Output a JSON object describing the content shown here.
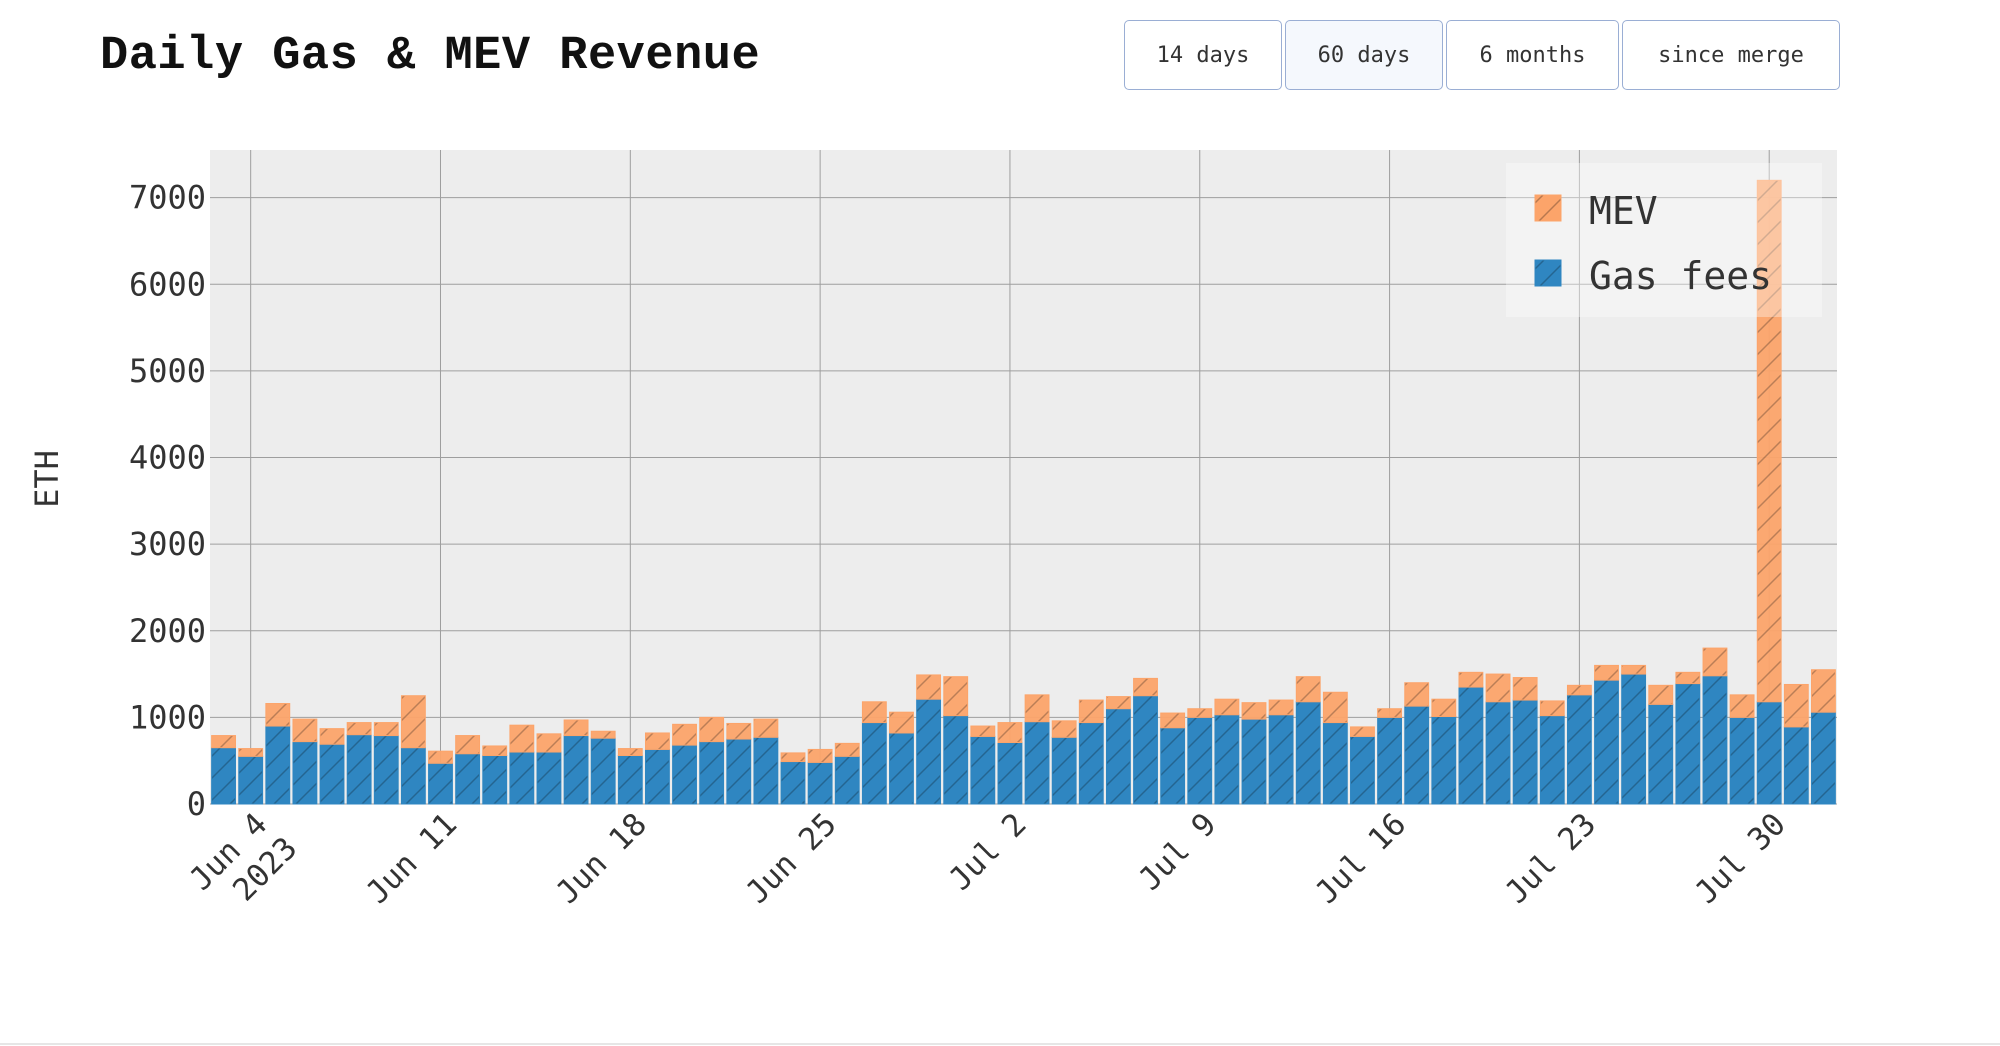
{
  "header": {
    "title": "Daily Gas & MEV Revenue"
  },
  "range_buttons": [
    {
      "label": "14 days",
      "active": false
    },
    {
      "label": "60 days",
      "active": true
    },
    {
      "label": "6 months",
      "active": false
    },
    {
      "label": "since merge",
      "active": false
    }
  ],
  "colors": {
    "gas_fees": "#2f86c1",
    "mev": "#fca46a",
    "plot_background": "#ededed",
    "gridline": "#9e9e9e"
  },
  "chart_data": {
    "type": "bar",
    "stacked": true,
    "title": "Daily Gas & MEV Revenue",
    "xlabel": "",
    "ylabel": "ETH",
    "ylim": [
      0,
      7550
    ],
    "xlim": [
      "2023-06-02T12:00",
      "2023-08-01T12:00"
    ],
    "grid": true,
    "legend_position": "top-right",
    "bar_pattern": "diagonal-hatch",
    "y_ticks": [
      0,
      1000,
      2000,
      3000,
      4000,
      5000,
      6000,
      7000
    ],
    "x_ticks": [
      {
        "date": "2023-06-04",
        "label": "Jun 4",
        "sublabel": "2023"
      },
      {
        "date": "2023-06-11",
        "label": "Jun 11"
      },
      {
        "date": "2023-06-18",
        "label": "Jun 18"
      },
      {
        "date": "2023-06-25",
        "label": "Jun 25"
      },
      {
        "date": "2023-07-02",
        "label": "Jul 2"
      },
      {
        "date": "2023-07-09",
        "label": "Jul 9"
      },
      {
        "date": "2023-07-16",
        "label": "Jul 16"
      },
      {
        "date": "2023-07-23",
        "label": "Jul 23"
      },
      {
        "date": "2023-07-30",
        "label": "Jul 30"
      }
    ],
    "x": [
      "2023-06-03",
      "2023-06-04",
      "2023-06-05",
      "2023-06-06",
      "2023-06-07",
      "2023-06-08",
      "2023-06-09",
      "2023-06-10",
      "2023-06-11",
      "2023-06-12",
      "2023-06-13",
      "2023-06-14",
      "2023-06-15",
      "2023-06-16",
      "2023-06-17",
      "2023-06-18",
      "2023-06-19",
      "2023-06-20",
      "2023-06-21",
      "2023-06-22",
      "2023-06-23",
      "2023-06-24",
      "2023-06-25",
      "2023-06-26",
      "2023-06-27",
      "2023-06-28",
      "2023-06-29",
      "2023-06-30",
      "2023-07-01",
      "2023-07-02",
      "2023-07-03",
      "2023-07-04",
      "2023-07-05",
      "2023-07-06",
      "2023-07-07",
      "2023-07-08",
      "2023-07-09",
      "2023-07-10",
      "2023-07-11",
      "2023-07-12",
      "2023-07-13",
      "2023-07-14",
      "2023-07-15",
      "2023-07-16",
      "2023-07-17",
      "2023-07-18",
      "2023-07-19",
      "2023-07-20",
      "2023-07-21",
      "2023-07-22",
      "2023-07-23",
      "2023-07-24",
      "2023-07-25",
      "2023-07-26",
      "2023-07-27",
      "2023-07-28",
      "2023-07-29",
      "2023-07-30",
      "2023-07-31",
      "2023-08-01"
    ],
    "series": [
      {
        "name": "Gas fees",
        "values": [
          650,
          550,
          900,
          720,
          690,
          800,
          790,
          650,
          470,
          580,
          560,
          600,
          600,
          790,
          760,
          560,
          630,
          680,
          720,
          750,
          770,
          490,
          480,
          550,
          940,
          820,
          1210,
          1020,
          780,
          710,
          950,
          770,
          940,
          1100,
          1250,
          880,
          1000,
          1030,
          980,
          1030,
          1180,
          940,
          780,
          1000,
          1130,
          1010,
          1350,
          1180,
          1200,
          1020,
          1260,
          1430,
          1500,
          1150,
          1390,
          1480,
          1000,
          1180,
          890,
          1060
        ]
      },
      {
        "name": "MEV",
        "values": [
          140,
          90,
          260,
          260,
          180,
          140,
          150,
          600,
          140,
          210,
          110,
          310,
          210,
          180,
          80,
          80,
          190,
          240,
          280,
          180,
          210,
          100,
          150,
          150,
          240,
          240,
          280,
          450,
          120,
          230,
          310,
          190,
          260,
          140,
          200,
          170,
          100,
          180,
          190,
          170,
          290,
          350,
          110,
          100,
          270,
          200,
          170,
          320,
          260,
          170,
          110,
          170,
          100,
          220,
          130,
          320,
          260,
          6020,
          490,
          490
        ]
      }
    ]
  }
}
